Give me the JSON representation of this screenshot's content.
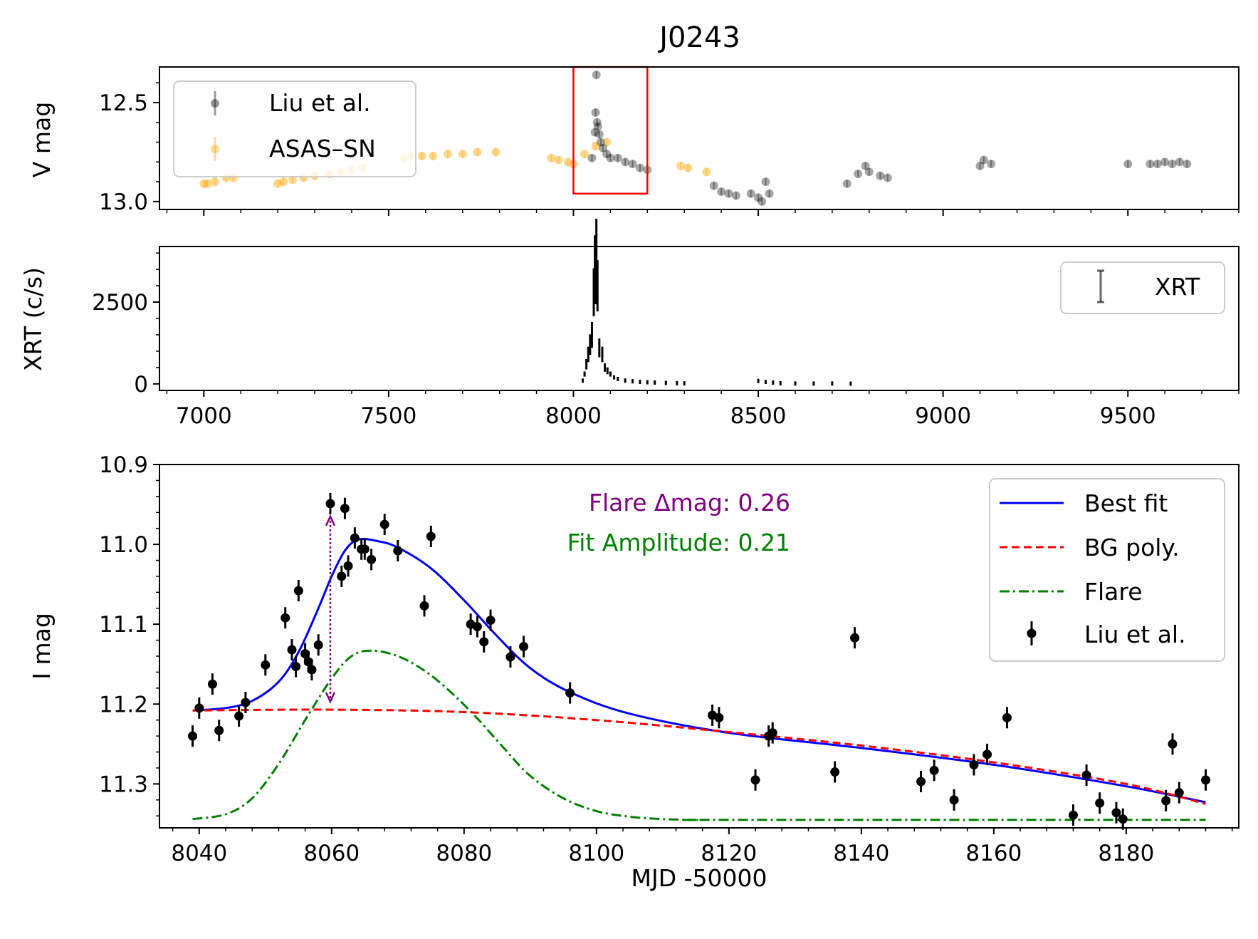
{
  "title": "J0243",
  "colors": {
    "liu": "#000000",
    "asassn": "#ffa500",
    "best_fit": "#0000ff",
    "bg_poly": "#ff0000",
    "flare": "#008000",
    "arrow": "#800080",
    "box": "#ff0000"
  },
  "panel_top": {
    "ylabel": "V mag",
    "yticks": [
      "12.5",
      "13.0"
    ],
    "legend": {
      "liu": "Liu et al.",
      "asassn": "ASAS–SN"
    }
  },
  "panel_mid": {
    "ylabel": "XRT (c/s)",
    "yticks": [
      "0",
      "2500"
    ],
    "xticks": [
      "7000",
      "7500",
      "8000",
      "8500",
      "9000",
      "9500"
    ],
    "legend": {
      "xrt": "XRT"
    }
  },
  "panel_bot": {
    "ylabel": "I mag",
    "xlabel": "MJD -50000",
    "yticks": [
      "10.9",
      "11.0",
      "11.1",
      "11.2",
      "11.3"
    ],
    "xticks": [
      "8040",
      "8060",
      "8080",
      "8100",
      "8120",
      "8140",
      "8160",
      "8180"
    ],
    "annot_flare": "Flare Δmag: 0.26",
    "annot_amp": "Fit Amplitude: 0.21",
    "legend": {
      "best": "Best fit",
      "bg": "BG poly.",
      "flare": "Flare",
      "liu": "Liu et al."
    }
  },
  "chart_data": [
    {
      "type": "scatter",
      "ylabel": "V mag",
      "xlim": [
        6880,
        9800
      ],
      "ylim": [
        13.04,
        12.32
      ],
      "y_inverted": true,
      "highlight_box": {
        "x": [
          8000,
          8200
        ],
        "y": [
          12.32,
          12.96
        ]
      },
      "series": [
        {
          "name": "ASAS–SN",
          "x": [
            7000,
            7010,
            7030,
            7060,
            7080,
            7200,
            7215,
            7240,
            7270,
            7300,
            7340,
            7370,
            7400,
            7430,
            7540,
            7560,
            7590,
            7620,
            7660,
            7700,
            7740,
            7790,
            7940,
            7960,
            7985,
            8000,
            8030,
            8060,
            8090,
            8290,
            8310,
            8360
          ],
          "y": [
            12.91,
            12.91,
            12.9,
            12.88,
            12.88,
            12.91,
            12.9,
            12.89,
            12.88,
            12.87,
            12.86,
            12.85,
            12.84,
            12.83,
            12.78,
            12.77,
            12.77,
            12.77,
            12.76,
            12.76,
            12.75,
            12.75,
            12.78,
            12.79,
            12.8,
            12.81,
            12.76,
            12.72,
            12.7,
            12.82,
            12.83,
            12.85
          ]
        },
        {
          "name": "Liu et al.",
          "x": [
            8050,
            8058,
            8060,
            8062,
            8064,
            8066,
            8070,
            8074,
            8080,
            8090,
            8100,
            8120,
            8140,
            8160,
            8180,
            8200,
            8380,
            8400,
            8420,
            8440,
            8480,
            8500,
            8510,
            8520,
            8530,
            8740,
            8770,
            8790,
            8800,
            8830,
            8850,
            9100,
            9110,
            9130,
            9500,
            9560,
            9580,
            9600,
            9620,
            9640,
            9660
          ],
          "y": [
            12.78,
            12.65,
            12.55,
            12.36,
            12.6,
            12.62,
            12.66,
            12.7,
            12.73,
            12.76,
            12.78,
            12.78,
            12.8,
            12.81,
            12.83,
            12.84,
            12.92,
            12.95,
            12.96,
            12.97,
            12.96,
            12.98,
            13.0,
            12.9,
            12.96,
            12.91,
            12.86,
            12.82,
            12.85,
            12.87,
            12.88,
            12.82,
            12.79,
            12.81,
            12.81,
            12.81,
            12.81,
            12.8,
            12.81,
            12.8,
            12.81
          ]
        }
      ]
    },
    {
      "type": "scatter",
      "ylabel": "XRT (c/s)",
      "xlim": [
        6880,
        9800
      ],
      "ylim": [
        -200,
        4200
      ],
      "series": [
        {
          "name": "XRT",
          "x": [
            8025,
            8030,
            8035,
            8040,
            8045,
            8050,
            8055,
            8058,
            8060,
            8062,
            8065,
            8070,
            8078,
            8085,
            8092,
            8100,
            8110,
            8120,
            8140,
            8160,
            8180,
            8200,
            8220,
            8250,
            8280,
            8300,
            8500,
            8520,
            8540,
            8560,
            8600,
            8650,
            8700,
            8750
          ],
          "y": [
            100,
            300,
            600,
            900,
            1200,
            1500,
            2800,
            3600,
            3300,
            4000,
            3000,
            1100,
            900,
            500,
            400,
            300,
            200,
            150,
            100,
            80,
            60,
            50,
            40,
            30,
            20,
            15,
            90,
            60,
            40,
            20,
            10,
            10,
            10,
            5
          ]
        }
      ]
    },
    {
      "type": "line",
      "xlabel": "MJD -50000",
      "ylabel": "I mag",
      "xlim": [
        8034,
        8197
      ],
      "ylim": [
        11.355,
        10.9
      ],
      "y_inverted": true,
      "annotations": [
        "Flare Δmag: 0.26",
        "Fit Amplitude: 0.21"
      ],
      "series": [
        {
          "name": "Best fit",
          "x": [
            8039,
            8044,
            8048,
            8052,
            8055,
            8058,
            8060,
            8062,
            8064,
            8067,
            8070,
            8075,
            8080,
            8085,
            8090,
            8096,
            8105,
            8120,
            8140,
            8160,
            8180,
            8192
          ],
          "y": [
            11.208,
            11.205,
            11.196,
            11.172,
            11.135,
            11.08,
            11.04,
            11.008,
            10.994,
            10.996,
            11.004,
            11.03,
            11.07,
            11.115,
            11.155,
            11.185,
            11.212,
            11.236,
            11.255,
            11.276,
            11.303,
            11.323
          ]
        },
        {
          "name": "BG poly.",
          "x": [
            8039,
            8060,
            8080,
            8100,
            8120,
            8140,
            8160,
            8180,
            8192
          ],
          "y": [
            11.208,
            11.207,
            11.21,
            11.22,
            11.235,
            11.252,
            11.273,
            11.3,
            11.325
          ]
        },
        {
          "name": "Flare",
          "x": [
            8039,
            8044,
            8048,
            8052,
            8056,
            8060,
            8063,
            8066,
            8070,
            8074,
            8078,
            8082,
            8086,
            8090,
            8095,
            8100,
            8105,
            8110,
            8115,
            8120,
            8192
          ],
          "y": [
            11.344,
            11.338,
            11.318,
            11.275,
            11.22,
            11.168,
            11.14,
            11.133,
            11.14,
            11.158,
            11.185,
            11.218,
            11.255,
            11.29,
            11.318,
            11.334,
            11.341,
            11.344,
            11.345,
            11.345,
            11.345
          ]
        },
        {
          "name": "Liu et al.",
          "x": [
            8039,
            8040,
            8042,
            8043,
            8046,
            8047,
            8050,
            8053,
            8054,
            8054.6,
            8055,
            8056,
            8056.5,
            8057,
            8058,
            8059.8,
            8061.5,
            8062,
            8062.5,
            8063.5,
            8064.5,
            8065,
            8066,
            8068,
            8070,
            8074,
            8075,
            8081,
            8082,
            8083,
            8084,
            8087,
            8089,
            8096,
            8117.5,
            8118.5,
            8124,
            8126,
            8126.6,
            8136,
            8139,
            8149,
            8151,
            8154,
            8157,
            8159,
            8162,
            8172,
            8174,
            8176,
            8178.5,
            8179.5,
            8186,
            8187,
            8188,
            8192
          ],
          "y": [
            11.24,
            11.205,
            11.175,
            11.233,
            11.215,
            11.198,
            11.151,
            11.092,
            11.132,
            11.153,
            11.058,
            11.137,
            11.147,
            11.157,
            11.126,
            10.949,
            11.04,
            10.955,
            11.027,
            10.992,
            11.006,
            11.006,
            11.019,
            10.975,
            11.008,
            11.077,
            10.99,
            11.1,
            11.103,
            11.122,
            11.095,
            11.141,
            11.128,
            11.186,
            11.214,
            11.217,
            11.295,
            11.24,
            11.236,
            11.285,
            11.117,
            11.297,
            11.283,
            11.32,
            11.276,
            11.263,
            11.217,
            11.339,
            11.289,
            11.324,
            11.336,
            11.344,
            11.321,
            11.25,
            11.311,
            11.295
          ]
        }
      ]
    }
  ]
}
